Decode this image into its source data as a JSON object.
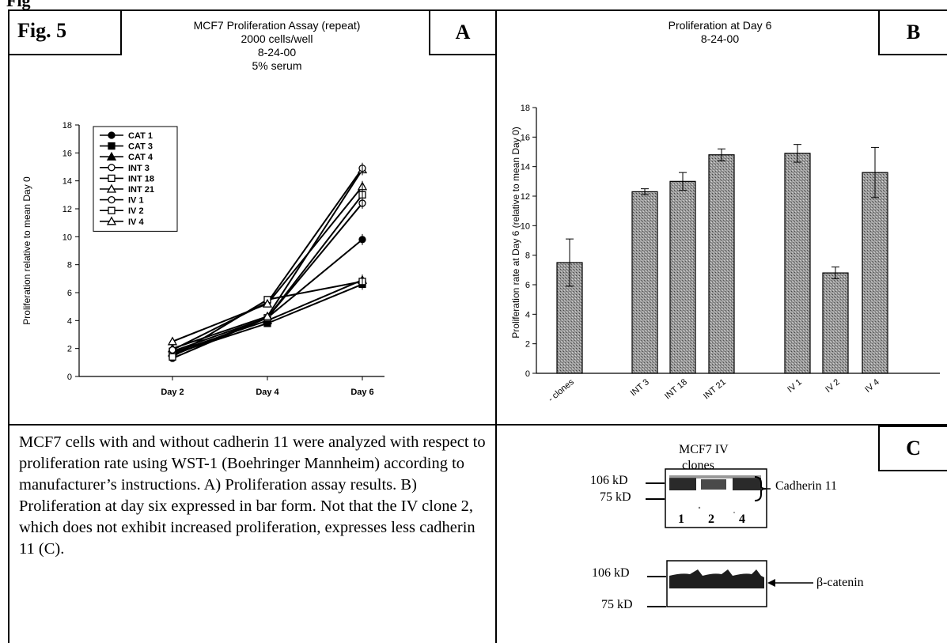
{
  "header_partial": "Fig",
  "figure": {
    "label": "Fig. 5",
    "panel_a_letter": "A",
    "panel_b_letter": "B",
    "panel_c_letter": "C"
  },
  "panel_a": {
    "title_lines": [
      "MCF7 Proliferation Assay (repeat)",
      "2000 cells/well",
      "8-24-00",
      "5% serum"
    ]
  },
  "panel_b": {
    "title_lines": [
      "Proliferation at Day 6",
      "8-24-00"
    ]
  },
  "caption": "MCF7 cells with and without cadherin 11 were analyzed with respect to proliferation rate using WST-1 (Boehringer Mannheim) according to manufacturer’s instructions.  A) Proliferation assay results.  B)  Proliferation at day six expressed in bar form.  Not that the IV clone 2, which does not exhibit increased proliferation, expresses less cadherin 11 (C).",
  "panel_c": {
    "title_line1": "MCF7 IV",
    "title_line2": "clones",
    "marker_106": "106 kD",
    "marker_75": "75 kD",
    "lane_labels": [
      "1",
      "2",
      "4"
    ],
    "band_top_label": "Cadherin 11",
    "band_bottom_label": "β-catenin"
  },
  "chart_data": [
    {
      "type": "line",
      "ylabel": "Proliferation relative to mean Day 0",
      "xlabel": "",
      "categories": [
        "Day 2",
        "Day 4",
        "Day 6"
      ],
      "ylim": [
        0,
        18
      ],
      "yticks": [
        0,
        2,
        4,
        6,
        8,
        10,
        12,
        14,
        16,
        18
      ],
      "grid": false,
      "legend_position": "top-left",
      "series": [
        {
          "name": "CAT 1",
          "marker": "circle-filled",
          "values": [
            1.3,
            4.2,
            9.8
          ]
        },
        {
          "name": "CAT 3",
          "marker": "square-filled",
          "values": [
            1.6,
            3.8,
            6.6
          ]
        },
        {
          "name": "CAT 4",
          "marker": "triangle-filled",
          "values": [
            1.7,
            4.0,
            6.9
          ]
        },
        {
          "name": "INT 3",
          "marker": "circle-open",
          "values": [
            1.5,
            4.2,
            12.4
          ]
        },
        {
          "name": "INT 18",
          "marker": "square-open",
          "values": [
            1.8,
            4.2,
            13.0
          ]
        },
        {
          "name": "INT 21",
          "marker": "triangle-open",
          "values": [
            2.0,
            4.3,
            14.8
          ]
        },
        {
          "name": "IV 1",
          "marker": "circle-open",
          "values": [
            1.9,
            5.3,
            14.9
          ]
        },
        {
          "name": "IV 2",
          "marker": "square-open",
          "values": [
            1.4,
            5.5,
            6.8
          ]
        },
        {
          "name": "IV 4",
          "marker": "triangle-open",
          "values": [
            2.5,
            5.2,
            13.6
          ]
        }
      ]
    },
    {
      "type": "bar",
      "ylabel": "Proliferation rate at Day 6 (relative to mean Day 0)",
      "xlabel": "",
      "categories": [
        "- clones",
        "INT 3",
        "INT 18",
        "INT 21",
        "IV 1",
        "IV 2",
        "IV 4"
      ],
      "values": [
        7.5,
        12.3,
        13.0,
        14.8,
        14.9,
        6.8,
        13.6
      ],
      "errors": [
        1.6,
        0.2,
        0.6,
        0.4,
        0.6,
        0.4,
        1.7
      ],
      "ylim": [
        0,
        18
      ],
      "yticks": [
        0,
        2,
        4,
        6,
        8,
        10,
        12,
        14,
        16,
        18
      ],
      "grid": false
    }
  ]
}
